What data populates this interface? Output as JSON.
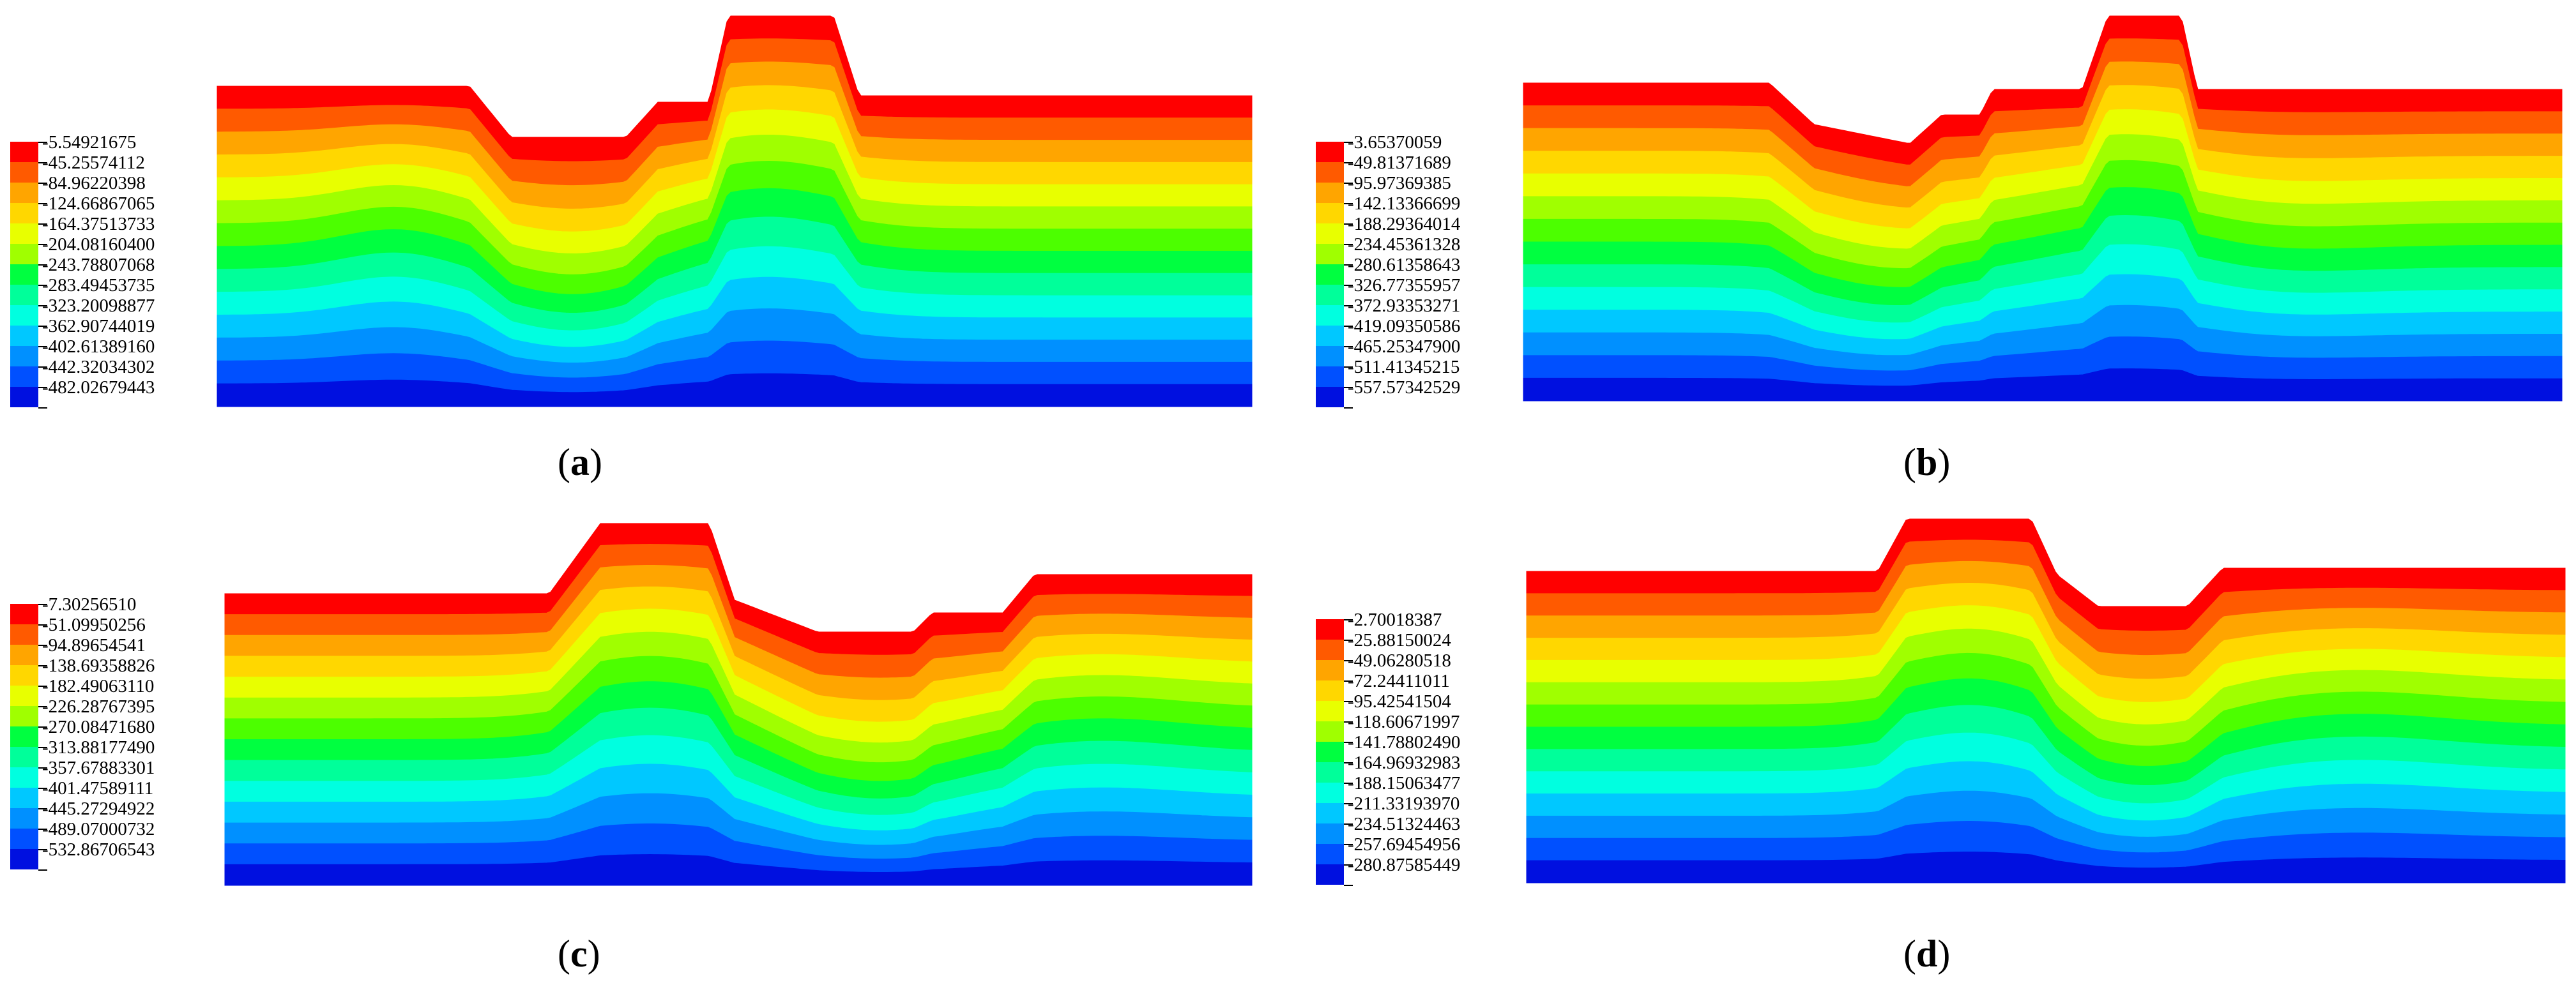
{
  "colors": [
    "#ff0000",
    "#ff5a00",
    "#ffa500",
    "#ffd700",
    "#e8ff00",
    "#a0ff00",
    "#4cff00",
    "#00ff40",
    "#00ff9a",
    "#00ffe0",
    "#00c8ff",
    "#0090ff",
    "#0050ff",
    "#0010e0"
  ],
  "panels": [
    {
      "id": "a",
      "caption_open": "(",
      "caption_letter": "a",
      "caption_close": ")",
      "legend": [
        "-5.54921675",
        "-45.25574112",
        "-84.96220398",
        "-124.66867065",
        "-164.37513733",
        "-204.08160400",
        "-243.78807068",
        "-283.49453735",
        "-323.20098877",
        "-362.90744019",
        "-402.61389160",
        "-442.32034302",
        "-482.02679443"
      ]
    },
    {
      "id": "b",
      "caption_open": "(",
      "caption_letter": "b",
      "caption_close": ")",
      "legend": [
        "-3.65370059",
        "-49.81371689",
        "-95.97369385",
        "-142.13366699",
        "-188.29364014",
        "-234.45361328",
        "-280.61358643",
        "-326.77355957",
        "-372.93353271",
        "-419.09350586",
        "-465.25347900",
        "-511.41345215",
        "-557.57342529"
      ]
    },
    {
      "id": "c",
      "caption_open": "(",
      "caption_letter": "c",
      "caption_close": ")",
      "legend": [
        "-7.30256510",
        "-51.09950256",
        "-94.89654541",
        "-138.69358826",
        "-182.49063110",
        "-226.28767395",
        "-270.08471680",
        "-313.88177490",
        "-357.67883301",
        "-401.47589111",
        "-445.27294922",
        "-489.07000732",
        "-532.86706543"
      ]
    },
    {
      "id": "d",
      "caption_open": "(",
      "caption_letter": "d",
      "caption_close": ")",
      "legend": [
        "-2.70018387",
        "-25.88150024",
        "-49.06280518",
        "-72.24411011",
        "-95.42541504",
        "-118.60671997",
        "-141.78802490",
        "-164.96932983",
        "-188.15063477",
        "-211.33193970",
        "-234.51324463",
        "-257.69454956",
        "-280.87585449"
      ]
    }
  ]
}
